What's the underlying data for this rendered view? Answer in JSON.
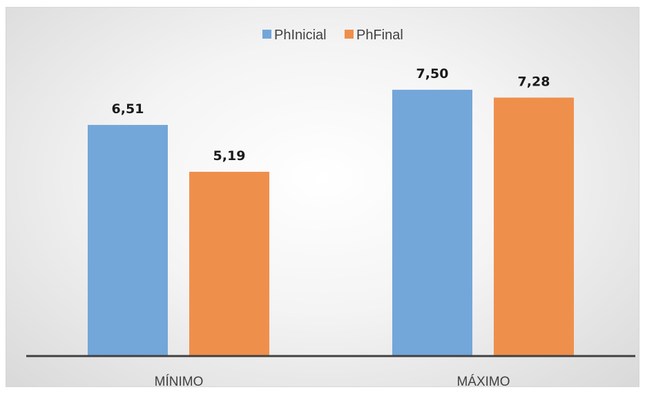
{
  "chart_data": {
    "type": "bar",
    "categories": [
      "MÍNIMO",
      "MÁXIMO"
    ],
    "series": [
      {
        "name": "PhInicial",
        "values": [
          6.51,
          7.5
        ],
        "labels": [
          "6,51",
          "7,50"
        ],
        "color": "#73a6d9"
      },
      {
        "name": "PhFinal",
        "values": [
          5.19,
          7.28
        ],
        "labels": [
          "5,19",
          "7,28"
        ],
        "color": "#ef8f4c"
      }
    ],
    "title": "",
    "xlabel": "",
    "ylabel": "",
    "ylim": [
      0,
      8.2
    ],
    "legend_position": "top-center",
    "grid": false,
    "axis_color": "#404040"
  }
}
